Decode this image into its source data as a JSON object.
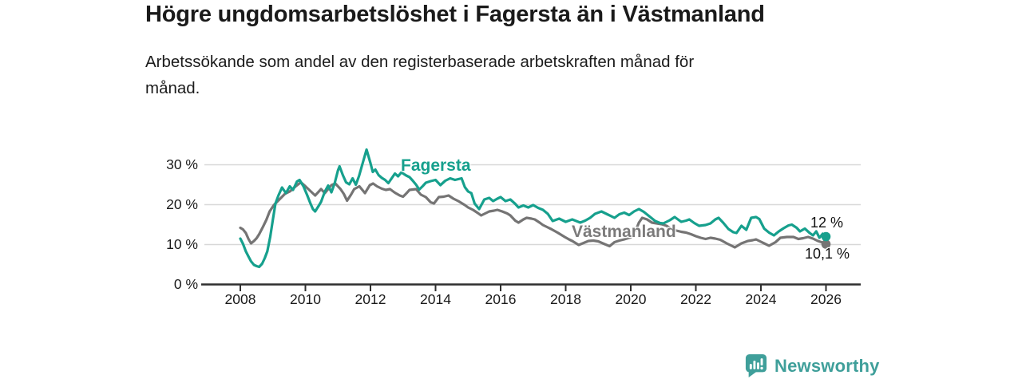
{
  "header": {
    "title": "Högre ungdomsarbetslöshet i Fagersta än i Västmanland",
    "subtitle": "Arbetssökande som andel av den registerbaserade arbetskraften månad för\nmånad."
  },
  "colors": {
    "accent_teal": "#16a08d",
    "line_gray": "#757474",
    "label_gray": "#7b7a7a",
    "text": "#1a1a1a",
    "grid": "#d8d8d8",
    "axis": "#2f2f2f",
    "brand_teal": "#3f9f9a"
  },
  "chart_data": {
    "type": "line",
    "title": "Högre ungdomsarbetslöshet i Fagersta än i Västmanland",
    "xlabel": "",
    "ylabel": "",
    "unit": "%",
    "grid": "horizontal",
    "legend": "inline-labels",
    "xlim": [
      2006.9,
      2027.1
    ],
    "ylim": [
      0,
      35.2
    ],
    "yticks": [
      0,
      10,
      20,
      30
    ],
    "ytick_labels": [
      "0 %",
      "10 %",
      "20 %",
      "30 %"
    ],
    "xticks": [
      2008,
      2010,
      2012,
      2014,
      2016,
      2018,
      2020,
      2022,
      2024,
      2026
    ],
    "series": [
      {
        "key": "fagersta",
        "name": "Fagersta",
        "color": "#16a08d",
        "end_label": "12 %",
        "end_value": 12.0,
        "points": [
          [
            2008.0,
            11.5
          ],
          [
            2008.08,
            10.2
          ],
          [
            2008.17,
            8.3
          ],
          [
            2008.25,
            7.0
          ],
          [
            2008.33,
            5.8
          ],
          [
            2008.42,
            4.9
          ],
          [
            2008.5,
            4.6
          ],
          [
            2008.58,
            4.4
          ],
          [
            2008.67,
            5.2
          ],
          [
            2008.75,
            6.6
          ],
          [
            2008.83,
            8.3
          ],
          [
            2008.92,
            12.0
          ],
          [
            2009.0,
            16.3
          ],
          [
            2009.08,
            20.3
          ],
          [
            2009.17,
            22.3
          ],
          [
            2009.28,
            24.3
          ],
          [
            2009.4,
            22.9
          ],
          [
            2009.52,
            24.6
          ],
          [
            2009.62,
            23.7
          ],
          [
            2009.74,
            25.8
          ],
          [
            2009.82,
            26.2
          ],
          [
            2009.94,
            24.6
          ],
          [
            2010.06,
            22.3
          ],
          [
            2010.15,
            20.4
          ],
          [
            2010.23,
            18.9
          ],
          [
            2010.3,
            18.3
          ],
          [
            2010.4,
            19.6
          ],
          [
            2010.48,
            20.7
          ],
          [
            2010.6,
            23.3
          ],
          [
            2010.7,
            24.8
          ],
          [
            2010.8,
            23.1
          ],
          [
            2010.9,
            25.4
          ],
          [
            2011.0,
            28.6
          ],
          [
            2011.05,
            29.6
          ],
          [
            2011.15,
            27.4
          ],
          [
            2011.25,
            25.6
          ],
          [
            2011.35,
            25.1
          ],
          [
            2011.45,
            26.6
          ],
          [
            2011.55,
            25.0
          ],
          [
            2011.65,
            27.2
          ],
          [
            2011.75,
            30.1
          ],
          [
            2011.88,
            33.8
          ],
          [
            2012.0,
            30.4
          ],
          [
            2012.07,
            28.2
          ],
          [
            2012.15,
            28.8
          ],
          [
            2012.25,
            27.4
          ],
          [
            2012.35,
            26.7
          ],
          [
            2012.45,
            26.2
          ],
          [
            2012.55,
            25.4
          ],
          [
            2012.65,
            26.6
          ],
          [
            2012.75,
            27.8
          ],
          [
            2012.85,
            27.1
          ],
          [
            2012.95,
            28.1
          ],
          [
            2013.1,
            27.3
          ],
          [
            2013.2,
            26.9
          ],
          [
            2013.3,
            26.0
          ],
          [
            2013.4,
            25.0
          ],
          [
            2013.5,
            23.8
          ],
          [
            2013.6,
            24.6
          ],
          [
            2013.7,
            25.5
          ],
          [
            2013.85,
            25.9
          ],
          [
            2014.0,
            26.2
          ],
          [
            2014.15,
            24.9
          ],
          [
            2014.3,
            26.0
          ],
          [
            2014.45,
            26.6
          ],
          [
            2014.6,
            26.2
          ],
          [
            2014.8,
            26.6
          ],
          [
            2014.9,
            24.4
          ],
          [
            2015.0,
            23.3
          ],
          [
            2015.1,
            22.9
          ],
          [
            2015.2,
            20.3
          ],
          [
            2015.34,
            18.9
          ],
          [
            2015.5,
            21.3
          ],
          [
            2015.65,
            21.7
          ],
          [
            2015.77,
            20.9
          ],
          [
            2015.9,
            21.5
          ],
          [
            2016.0,
            21.9
          ],
          [
            2016.15,
            20.9
          ],
          [
            2016.3,
            21.3
          ],
          [
            2016.45,
            20.2
          ],
          [
            2016.55,
            19.3
          ],
          [
            2016.7,
            19.8
          ],
          [
            2016.85,
            19.3
          ],
          [
            2017.0,
            19.9
          ],
          [
            2017.15,
            19.2
          ],
          [
            2017.3,
            18.7
          ],
          [
            2017.45,
            17.7
          ],
          [
            2017.6,
            15.9
          ],
          [
            2017.8,
            16.5
          ],
          [
            2018.0,
            15.7
          ],
          [
            2018.2,
            16.3
          ],
          [
            2018.45,
            15.5
          ],
          [
            2018.6,
            16.0
          ],
          [
            2018.75,
            16.7
          ],
          [
            2018.9,
            17.7
          ],
          [
            2019.1,
            18.3
          ],
          [
            2019.3,
            17.5
          ],
          [
            2019.5,
            16.7
          ],
          [
            2019.65,
            17.6
          ],
          [
            2019.8,
            18.0
          ],
          [
            2019.95,
            17.4
          ],
          [
            2020.1,
            18.3
          ],
          [
            2020.25,
            18.9
          ],
          [
            2020.4,
            18.2
          ],
          [
            2020.6,
            16.9
          ],
          [
            2020.75,
            15.9
          ],
          [
            2020.9,
            15.4
          ],
          [
            2021.0,
            15.3
          ],
          [
            2021.2,
            16.1
          ],
          [
            2021.35,
            16.9
          ],
          [
            2021.55,
            15.7
          ],
          [
            2021.7,
            16.0
          ],
          [
            2021.8,
            16.3
          ],
          [
            2021.95,
            15.4
          ],
          [
            2022.1,
            14.7
          ],
          [
            2022.3,
            14.9
          ],
          [
            2022.45,
            15.3
          ],
          [
            2022.6,
            16.3
          ],
          [
            2022.7,
            16.7
          ],
          [
            2022.85,
            15.4
          ],
          [
            2023.0,
            13.9
          ],
          [
            2023.15,
            13.1
          ],
          [
            2023.25,
            12.9
          ],
          [
            2023.4,
            14.7
          ],
          [
            2023.55,
            13.7
          ],
          [
            2023.7,
            16.7
          ],
          [
            2023.85,
            16.9
          ],
          [
            2023.95,
            16.4
          ],
          [
            2024.1,
            14.0
          ],
          [
            2024.25,
            13.0
          ],
          [
            2024.4,
            12.3
          ],
          [
            2024.55,
            13.3
          ],
          [
            2024.7,
            14.1
          ],
          [
            2024.85,
            14.8
          ],
          [
            2024.95,
            15.0
          ],
          [
            2025.1,
            14.2
          ],
          [
            2025.2,
            13.3
          ],
          [
            2025.35,
            14.0
          ],
          [
            2025.5,
            12.9
          ],
          [
            2025.6,
            12.3
          ],
          [
            2025.7,
            13.3
          ],
          [
            2025.8,
            11.7
          ],
          [
            2025.9,
            12.7
          ],
          [
            2026.0,
            12.0
          ]
        ]
      },
      {
        "key": "vastmanland",
        "name": "Västmanland",
        "color": "#757474",
        "label_color": "#7b7a7a",
        "end_label": "10,1 %",
        "end_value": 10.1,
        "points": [
          [
            2008.0,
            14.2
          ],
          [
            2008.08,
            13.8
          ],
          [
            2008.17,
            12.9
          ],
          [
            2008.25,
            11.4
          ],
          [
            2008.33,
            10.3
          ],
          [
            2008.42,
            10.9
          ],
          [
            2008.5,
            11.6
          ],
          [
            2008.58,
            12.6
          ],
          [
            2008.7,
            14.5
          ],
          [
            2008.8,
            16.2
          ],
          [
            2008.9,
            18.3
          ],
          [
            2009.03,
            19.9
          ],
          [
            2009.2,
            21.3
          ],
          [
            2009.37,
            22.7
          ],
          [
            2009.52,
            23.3
          ],
          [
            2009.7,
            24.6
          ],
          [
            2009.86,
            25.6
          ],
          [
            2010.0,
            24.6
          ],
          [
            2010.17,
            23.3
          ],
          [
            2010.3,
            22.3
          ],
          [
            2010.48,
            23.9
          ],
          [
            2010.6,
            22.9
          ],
          [
            2010.8,
            24.9
          ],
          [
            2010.92,
            25.3
          ],
          [
            2011.08,
            23.9
          ],
          [
            2011.18,
            22.7
          ],
          [
            2011.28,
            21.0
          ],
          [
            2011.4,
            22.5
          ],
          [
            2011.5,
            23.9
          ],
          [
            2011.66,
            24.6
          ],
          [
            2011.83,
            22.9
          ],
          [
            2011.98,
            24.9
          ],
          [
            2012.08,
            25.3
          ],
          [
            2012.2,
            24.6
          ],
          [
            2012.35,
            24.0
          ],
          [
            2012.47,
            23.7
          ],
          [
            2012.6,
            23.9
          ],
          [
            2012.75,
            23.0
          ],
          [
            2012.9,
            22.3
          ],
          [
            2013.0,
            22.0
          ],
          [
            2013.1,
            22.8
          ],
          [
            2013.2,
            23.7
          ],
          [
            2013.4,
            23.9
          ],
          [
            2013.55,
            22.5
          ],
          [
            2013.7,
            21.9
          ],
          [
            2013.85,
            20.6
          ],
          [
            2013.95,
            20.3
          ],
          [
            2014.1,
            21.9
          ],
          [
            2014.25,
            22.0
          ],
          [
            2014.4,
            22.3
          ],
          [
            2014.55,
            21.5
          ],
          [
            2014.7,
            20.9
          ],
          [
            2014.9,
            19.9
          ],
          [
            2015.0,
            19.3
          ],
          [
            2015.15,
            18.7
          ],
          [
            2015.3,
            17.9
          ],
          [
            2015.4,
            17.3
          ],
          [
            2015.55,
            17.9
          ],
          [
            2015.65,
            18.3
          ],
          [
            2015.8,
            18.5
          ],
          [
            2015.9,
            18.7
          ],
          [
            2016.05,
            18.3
          ],
          [
            2016.2,
            17.8
          ],
          [
            2016.3,
            17.3
          ],
          [
            2016.45,
            16.0
          ],
          [
            2016.55,
            15.5
          ],
          [
            2016.7,
            16.3
          ],
          [
            2016.8,
            16.7
          ],
          [
            2016.95,
            16.5
          ],
          [
            2017.05,
            16.3
          ],
          [
            2017.2,
            15.5
          ],
          [
            2017.3,
            14.9
          ],
          [
            2017.45,
            14.3
          ],
          [
            2017.55,
            13.9
          ],
          [
            2017.75,
            13.0
          ],
          [
            2017.97,
            11.9
          ],
          [
            2018.1,
            11.3
          ],
          [
            2018.2,
            10.9
          ],
          [
            2018.4,
            9.9
          ],
          [
            2018.55,
            10.4
          ],
          [
            2018.7,
            10.9
          ],
          [
            2018.85,
            11.0
          ],
          [
            2019.0,
            10.8
          ],
          [
            2019.2,
            10.1
          ],
          [
            2019.35,
            9.6
          ],
          [
            2019.5,
            10.6
          ],
          [
            2019.65,
            11.0
          ],
          [
            2019.8,
            11.3
          ],
          [
            2020.0,
            11.8
          ],
          [
            2020.15,
            13.5
          ],
          [
            2020.25,
            15.5
          ],
          [
            2020.35,
            16.7
          ],
          [
            2020.5,
            16.3
          ],
          [
            2020.65,
            15.5
          ],
          [
            2020.8,
            15.3
          ],
          [
            2020.95,
            15.1
          ],
          [
            2021.1,
            14.7
          ],
          [
            2021.25,
            13.9
          ],
          [
            2021.4,
            13.5
          ],
          [
            2021.55,
            13.2
          ],
          [
            2021.7,
            13.0
          ],
          [
            2021.85,
            12.6
          ],
          [
            2022.0,
            12.1
          ],
          [
            2022.15,
            11.7
          ],
          [
            2022.3,
            11.4
          ],
          [
            2022.45,
            11.7
          ],
          [
            2022.6,
            11.5
          ],
          [
            2022.75,
            11.2
          ],
          [
            2022.95,
            10.3
          ],
          [
            2023.1,
            9.7
          ],
          [
            2023.2,
            9.3
          ],
          [
            2023.4,
            10.3
          ],
          [
            2023.6,
            10.9
          ],
          [
            2023.75,
            11.1
          ],
          [
            2023.85,
            11.3
          ],
          [
            2024.0,
            10.7
          ],
          [
            2024.1,
            10.3
          ],
          [
            2024.25,
            9.7
          ],
          [
            2024.45,
            10.6
          ],
          [
            2024.6,
            11.7
          ],
          [
            2024.8,
            11.9
          ],
          [
            2025.0,
            11.9
          ],
          [
            2025.15,
            11.4
          ],
          [
            2025.3,
            11.6
          ],
          [
            2025.45,
            11.9
          ],
          [
            2025.6,
            11.5
          ],
          [
            2025.75,
            10.9
          ],
          [
            2025.9,
            10.5
          ],
          [
            2026.0,
            10.1
          ]
        ]
      }
    ]
  },
  "footer": {
    "brand": "Newsworthy",
    "brand_color": "#3f9f9a"
  }
}
